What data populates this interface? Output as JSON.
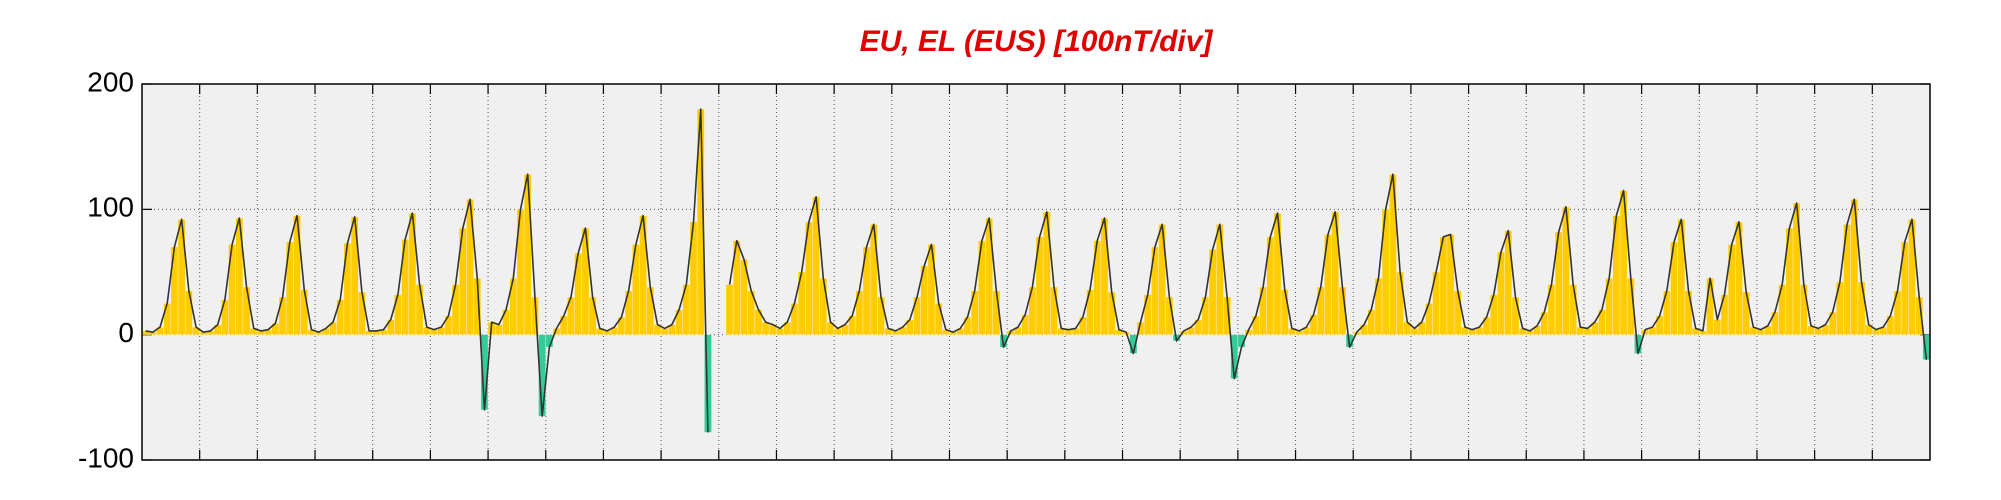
{
  "chart_data": {
    "type": "line",
    "title": "EU, EL (EUS)  [100nT/div]",
    "values": [
      3,
      2,
      6,
      25,
      70,
      92,
      35,
      6,
      2,
      3,
      8,
      28,
      72,
      93,
      38,
      5,
      3,
      4,
      9,
      30,
      74,
      95,
      36,
      4,
      2,
      5,
      10,
      28,
      73,
      94,
      34,
      3,
      3,
      4,
      12,
      32,
      76,
      97,
      40,
      6,
      4,
      6,
      15,
      40,
      85,
      108,
      45,
      -60,
      10,
      8,
      20,
      45,
      100,
      128,
      30,
      -65,
      -10,
      5,
      15,
      30,
      65,
      85,
      30,
      5,
      3,
      6,
      14,
      35,
      72,
      95,
      38,
      8,
      5,
      8,
      20,
      40,
      90,
      180,
      -78,
      null,
      null,
      40,
      75,
      60,
      35,
      20,
      10,
      8,
      5,
      10,
      25,
      50,
      90,
      110,
      45,
      10,
      5,
      8,
      15,
      35,
      70,
      88,
      30,
      5,
      3,
      6,
      12,
      30,
      55,
      72,
      25,
      4,
      2,
      5,
      14,
      35,
      75,
      93,
      35,
      -10,
      3,
      6,
      16,
      38,
      78,
      98,
      38,
      5,
      4,
      5,
      14,
      36,
      75,
      93,
      34,
      4,
      2,
      -15,
      10,
      32,
      70,
      88,
      30,
      -5,
      3,
      6,
      12,
      30,
      68,
      88,
      30,
      -35,
      -10,
      4,
      15,
      38,
      78,
      97,
      36,
      5,
      3,
      6,
      16,
      38,
      80,
      98,
      38,
      -10,
      2,
      8,
      20,
      45,
      100,
      128,
      50,
      10,
      5,
      10,
      25,
      50,
      78,
      80,
      35,
      6,
      4,
      6,
      14,
      32,
      66,
      83,
      30,
      5,
      3,
      7,
      18,
      40,
      82,
      102,
      40,
      6,
      5,
      10,
      20,
      45,
      95,
      115,
      45,
      -15,
      4,
      6,
      15,
      35,
      74,
      92,
      35,
      5,
      3,
      45,
      12,
      32,
      72,
      90,
      34,
      6,
      4,
      7,
      18,
      40,
      85,
      105,
      40,
      7,
      5,
      8,
      18,
      42,
      88,
      108,
      42,
      8,
      4,
      6,
      15,
      35,
      74,
      92,
      30,
      -20
    ],
    "ylim": [
      -100,
      200
    ],
    "yticks": [
      -100,
      0,
      100,
      200
    ],
    "grid": true,
    "line_color": "#333333",
    "positive_color": "#ffcc00",
    "negative_color": "#33cc99",
    "background": "#f0f0f0"
  }
}
